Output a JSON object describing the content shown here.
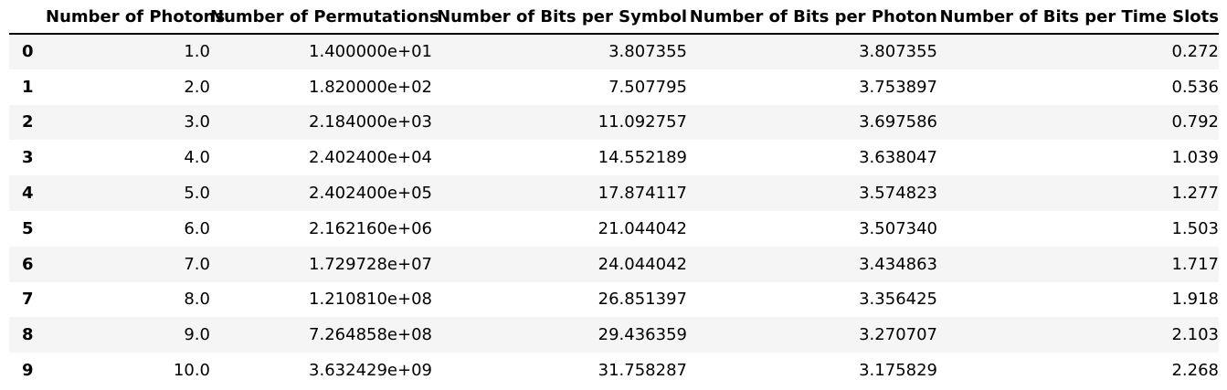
{
  "table": {
    "columns": [
      "Number of Photons",
      "Number of Permutations",
      "Number of Bits per Symbol",
      "Number of Bits per Photon",
      "Number of Bits per Time Slots"
    ],
    "rows": [
      {
        "index": "0",
        "cells": [
          "1.0",
          "1.400000e+01",
          "3.807355",
          "3.807355",
          "0.272"
        ]
      },
      {
        "index": "1",
        "cells": [
          "2.0",
          "1.820000e+02",
          "7.507795",
          "3.753897",
          "0.536"
        ]
      },
      {
        "index": "2",
        "cells": [
          "3.0",
          "2.184000e+03",
          "11.092757",
          "3.697586",
          "0.792"
        ]
      },
      {
        "index": "3",
        "cells": [
          "4.0",
          "2.402400e+04",
          "14.552189",
          "3.638047",
          "1.039"
        ]
      },
      {
        "index": "4",
        "cells": [
          "5.0",
          "2.402400e+05",
          "17.874117",
          "3.574823",
          "1.277"
        ]
      },
      {
        "index": "5",
        "cells": [
          "6.0",
          "2.162160e+06",
          "21.044042",
          "3.507340",
          "1.503"
        ]
      },
      {
        "index": "6",
        "cells": [
          "7.0",
          "1.729728e+07",
          "24.044042",
          "3.434863",
          "1.717"
        ]
      },
      {
        "index": "7",
        "cells": [
          "8.0",
          "1.210810e+08",
          "26.851397",
          "3.356425",
          "1.918"
        ]
      },
      {
        "index": "8",
        "cells": [
          "9.0",
          "7.264858e+08",
          "29.436359",
          "3.270707",
          "2.103"
        ]
      },
      {
        "index": "9",
        "cells": [
          "10.0",
          "3.632429e+09",
          "31.758287",
          "3.175829",
          "2.268"
        ]
      }
    ]
  }
}
